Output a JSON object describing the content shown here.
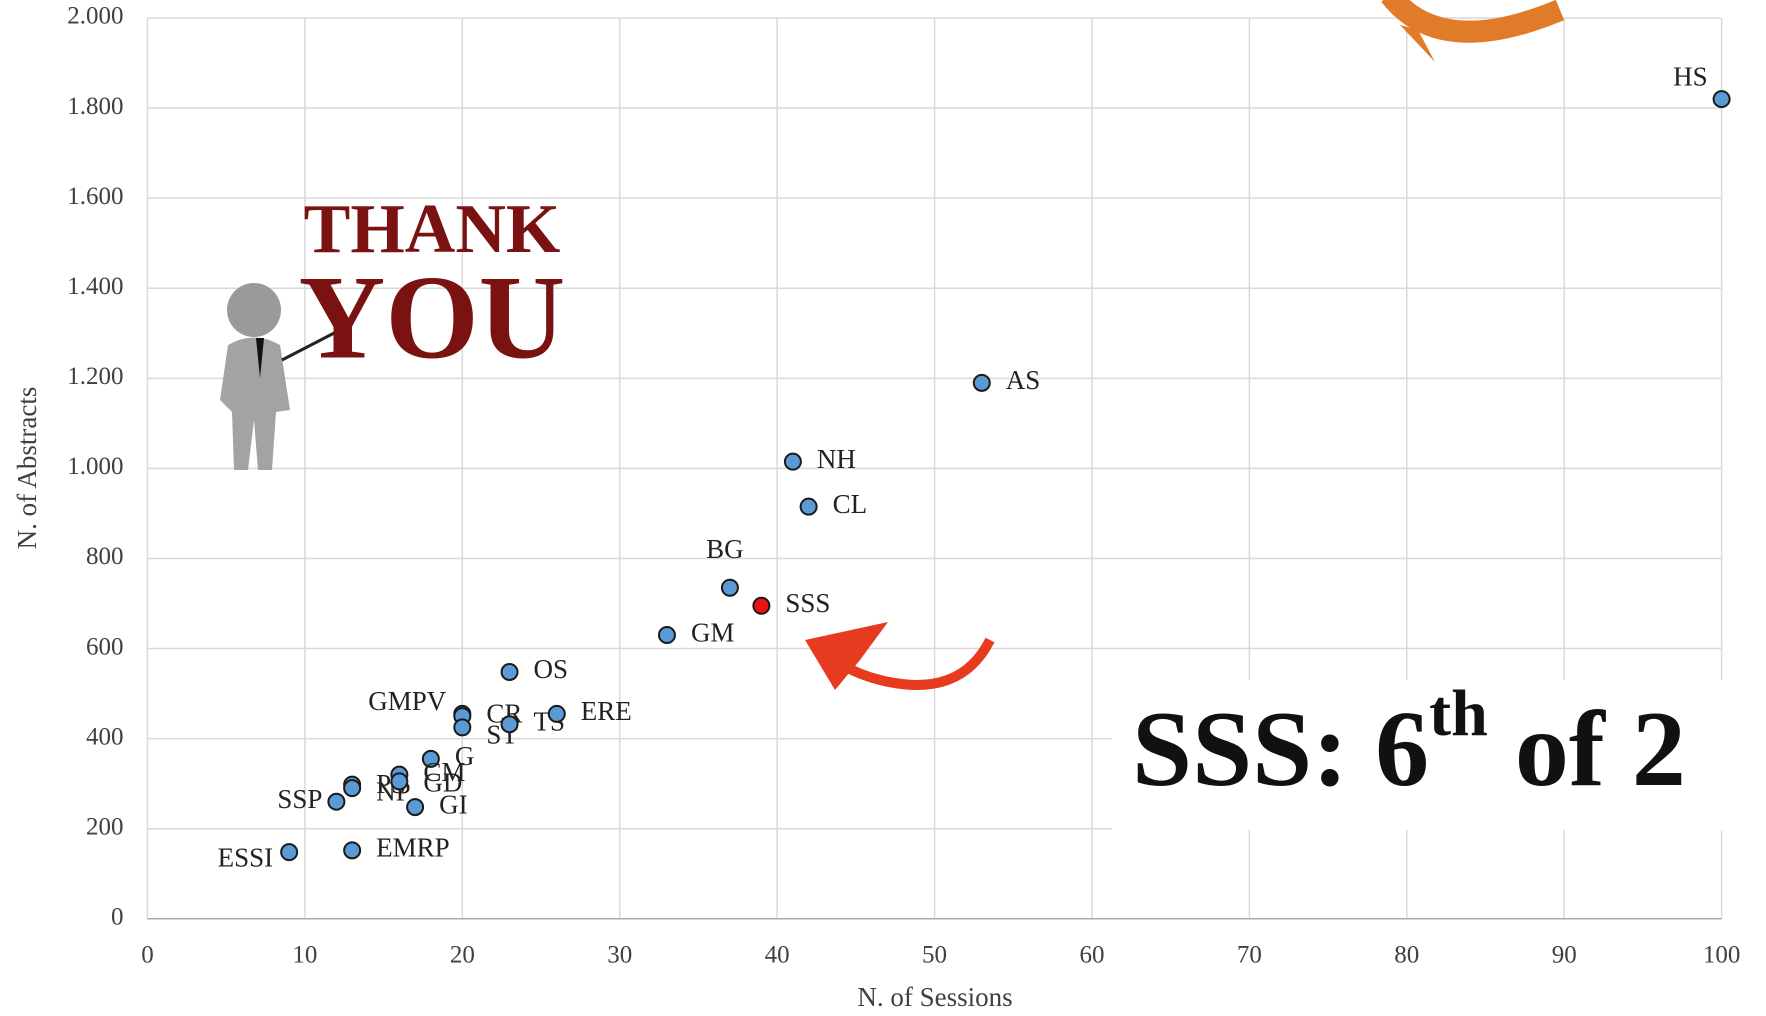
{
  "chart_data": {
    "type": "scatter",
    "x_label": "N. of Sessions",
    "y_label": "N. of Abstracts",
    "xlim": [
      0,
      100
    ],
    "ylim": [
      0,
      2000
    ],
    "xticks": [
      0,
      10,
      20,
      30,
      40,
      50,
      60,
      70,
      80,
      90,
      100
    ],
    "yticks": [
      0,
      200,
      400,
      600,
      800,
      {
        "value": 1000,
        "label": "1.000"
      },
      {
        "value": 1200,
        "label": "1.200"
      },
      {
        "value": 1400,
        "label": "1.400"
      },
      {
        "value": 1600,
        "label": "1.600"
      },
      {
        "value": 1800,
        "label": "1.800"
      },
      {
        "value": 2000,
        "label": "2.000"
      }
    ],
    "grid": true,
    "color": "#5b9bd5",
    "highlight_color": "#ee1111",
    "points": [
      {
        "label": "HS",
        "x": 100,
        "y": 1820
      },
      {
        "label": "AS",
        "x": 53,
        "y": 1190
      },
      {
        "label": "NH",
        "x": 41,
        "y": 1015
      },
      {
        "label": "CL",
        "x": 42,
        "y": 915
      },
      {
        "label": "BG",
        "x": 37,
        "y": 735
      },
      {
        "label": "SSS",
        "x": 39,
        "y": 695,
        "highlight": true
      },
      {
        "label": "GM",
        "x": 33,
        "y": 630
      },
      {
        "label": "OS",
        "x": 23,
        "y": 548
      },
      {
        "label": "GMPV",
        "x": 20,
        "y": 455
      },
      {
        "label": "CR",
        "x": 20,
        "y": 450
      },
      {
        "label": "ST",
        "x": 20,
        "y": 425
      },
      {
        "label": "TS",
        "x": 23,
        "y": 432
      },
      {
        "label": "ERE",
        "x": 26,
        "y": 455
      },
      {
        "label": "G",
        "x": 18,
        "y": 355
      },
      {
        "label": "PS",
        "x": 13,
        "y": 298
      },
      {
        "label": "NP",
        "x": 13,
        "y": 290
      },
      {
        "label": "CM",
        "x": 16,
        "y": 320
      },
      {
        "label": "GD",
        "x": 16,
        "y": 305
      },
      {
        "label": "SSP",
        "x": 12,
        "y": 260
      },
      {
        "label": "GI",
        "x": 17,
        "y": 248
      },
      {
        "label": "ESSI",
        "x": 9,
        "y": 148
      },
      {
        "label": "EMRP",
        "x": 13,
        "y": 152
      }
    ],
    "annotation": {
      "main": "SSS: 6",
      "sup": "th",
      "tail": " of 2"
    },
    "thank_you": {
      "line1": "THANK",
      "line2": "YOU"
    }
  }
}
